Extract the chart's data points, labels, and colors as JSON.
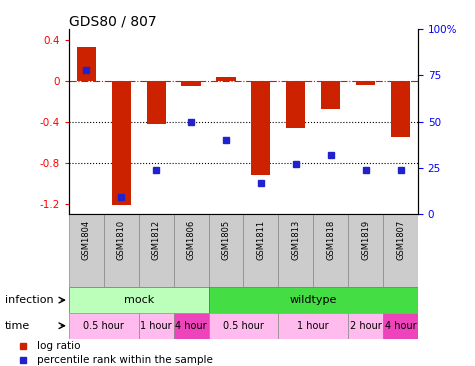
{
  "title": "GDS80 / 807",
  "samples": [
    "GSM1804",
    "GSM1810",
    "GSM1812",
    "GSM1806",
    "GSM1805",
    "GSM1811",
    "GSM1813",
    "GSM1818",
    "GSM1819",
    "GSM1807"
  ],
  "log_ratio": [
    0.33,
    -1.21,
    -0.42,
    -0.05,
    0.04,
    -0.92,
    -0.46,
    -0.28,
    -0.04,
    -0.55
  ],
  "percentile": [
    78,
    9,
    24,
    50,
    40,
    17,
    27,
    32,
    24,
    24
  ],
  "ylim_left": [
    -1.3,
    0.5
  ],
  "ylim_right": [
    0,
    100
  ],
  "bar_color": "#cc2200",
  "dot_color": "#2222cc",
  "infection_groups": [
    {
      "label": "mock",
      "start": 0,
      "end": 4,
      "color": "#bbffbb"
    },
    {
      "label": "wildtype",
      "start": 4,
      "end": 10,
      "color": "#44dd44"
    }
  ],
  "time_groups": [
    {
      "label": "0.5 hour",
      "start": 0,
      "end": 2,
      "color": "#ffbbee"
    },
    {
      "label": "1 hour",
      "start": 2,
      "end": 3,
      "color": "#ffbbee"
    },
    {
      "label": "4 hour",
      "start": 3,
      "end": 4,
      "color": "#ee44bb"
    },
    {
      "label": "0.5 hour",
      "start": 4,
      "end": 6,
      "color": "#ffbbee"
    },
    {
      "label": "1 hour",
      "start": 6,
      "end": 8,
      "color": "#ffbbee"
    },
    {
      "label": "2 hour",
      "start": 8,
      "end": 9,
      "color": "#ffbbee"
    },
    {
      "label": "4 hour",
      "start": 9,
      "end": 10,
      "color": "#ee44bb"
    }
  ],
  "legend_items": [
    {
      "label": "log ratio",
      "color": "#cc2200"
    },
    {
      "label": "percentile rank within the sample",
      "color": "#2222cc"
    }
  ],
  "fig_width": 4.75,
  "fig_height": 3.66,
  "dpi": 100
}
